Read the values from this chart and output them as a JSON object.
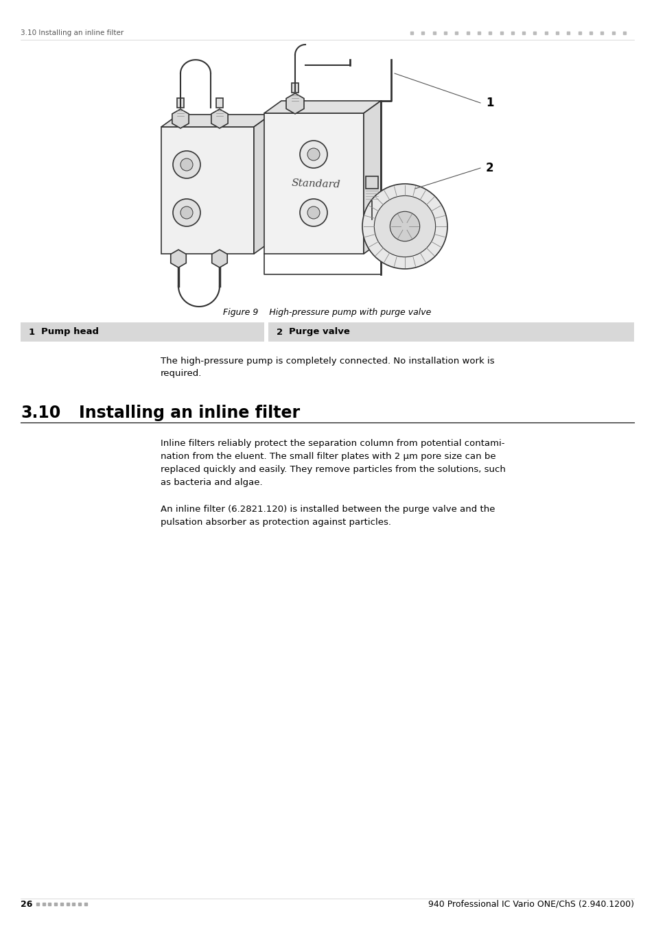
{
  "page_background": "#ffffff",
  "header_text_left": "3.10 Installing an inline filter",
  "header_dots_color": "#bbbbbb",
  "figure_caption": "Figure 9    High-pressure pump with purge valve",
  "table_rows": [
    {
      "left_num": "1",
      "left_label": "Pump head",
      "right_num": "2",
      "right_label": "Purge valve"
    }
  ],
  "table_bg": "#d0d0d0",
  "table_text_color": "#000000",
  "body_text_line1": "The high-pressure pump is completely connected. No installation work is",
  "body_text_line2": "required.",
  "section_number": "3.10",
  "section_title": "Installing an inline filter",
  "para1_lines": [
    "Inline filters reliably protect the separation column from potential contami-",
    "nation from the eluent. The small filter plates with 2 μm pore size can be",
    "replaced quickly and easily. They remove particles from the solutions, such",
    "as bacteria and algae."
  ],
  "para2_lines": [
    "An inline filter (6.2821.120) is installed between the purge valve and the",
    "pulsation absorber as protection against particles."
  ],
  "footer_page": "26",
  "footer_dots_color": "#aaaaaa",
  "footer_right": "940 Professional IC Vario ONE/ChS (2.940.1200)",
  "label1": "1",
  "label2": "2"
}
